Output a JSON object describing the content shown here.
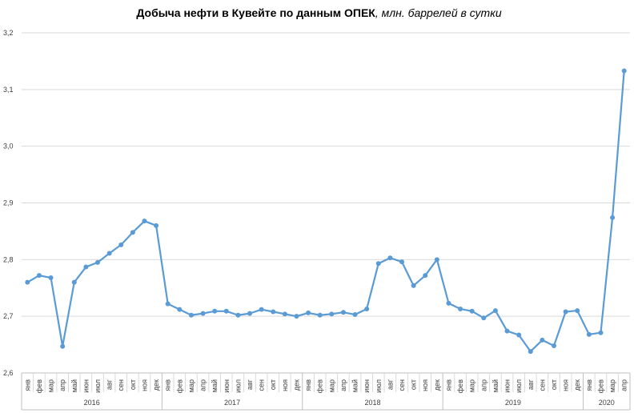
{
  "chart_data": {
    "type": "line",
    "title": "Добыча  нефти в Кувейте по данным  ОПЕК",
    "subtitle": ", млн. баррелей в сутки",
    "xlabel": "",
    "ylabel": "",
    "ylim": [
      2.6,
      3.2
    ],
    "yticks": [
      "2,6",
      "2,7",
      "2,8",
      "2,9",
      "3,0",
      "3,1",
      "3,2"
    ],
    "grid": true,
    "line_color": "#5b9bd5",
    "grid_color": "#d9d9d9",
    "months": [
      "янв",
      "фев",
      "мар",
      "апр",
      "май",
      "июн",
      "июл",
      "авг",
      "сен",
      "окт",
      "ноя",
      "дек"
    ],
    "years": [
      {
        "label": "2016",
        "n": 12
      },
      {
        "label": "2017",
        "n": 12
      },
      {
        "label": "2018",
        "n": 12
      },
      {
        "label": "2019",
        "n": 12
      },
      {
        "label": "2020",
        "n": 4
      }
    ],
    "series": [
      {
        "values": [
          2.76,
          2.772,
          2.768,
          2.647,
          2.76,
          2.787,
          2.795,
          2.811,
          2.826,
          2.848,
          2.868,
          2.86,
          2.722,
          2.712,
          2.702,
          2.705,
          2.709,
          2.709,
          2.702,
          2.705,
          2.712,
          2.708,
          2.704,
          2.7,
          2.706,
          2.702,
          2.704,
          2.707,
          2.703,
          2.713,
          2.793,
          2.803,
          2.796,
          2.754,
          2.772,
          2.8,
          2.723,
          2.713,
          2.709,
          2.697,
          2.71,
          2.674,
          2.667,
          2.638,
          2.658,
          2.648,
          2.708,
          2.71,
          2.668,
          2.671,
          2.874,
          3.133
        ]
      }
    ]
  }
}
